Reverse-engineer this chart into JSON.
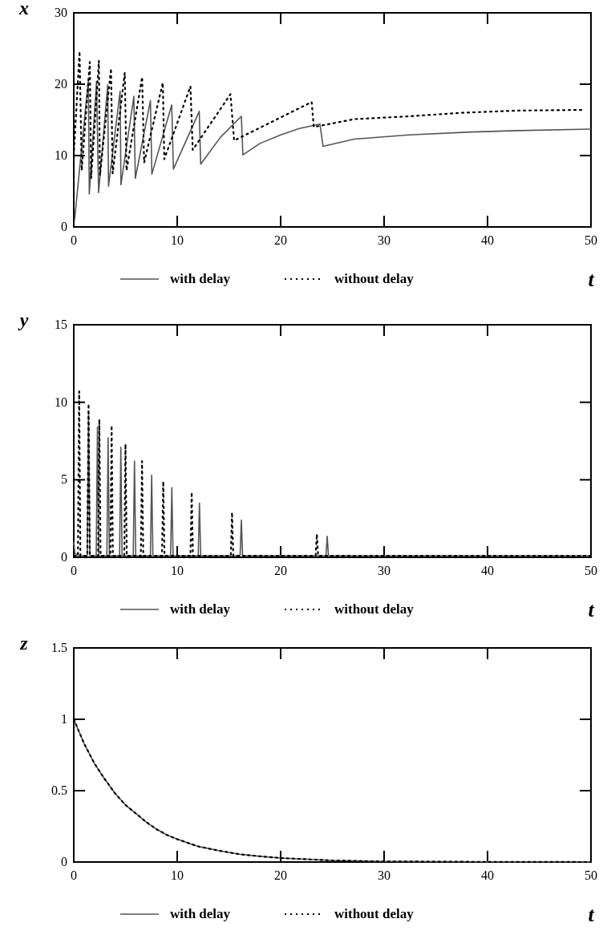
{
  "chart_data": [
    {
      "type": "line",
      "ylabel": "x",
      "xlabel": "t",
      "xlim": [
        0,
        50
      ],
      "ylim": [
        0,
        30
      ],
      "xticks": [
        0,
        10,
        20,
        30,
        40,
        50
      ],
      "yticks": [
        0,
        10,
        20,
        30
      ],
      "legend": "bottom",
      "grid": false,
      "series": [
        {
          "name": "with delay",
          "color": "#555555",
          "line_style": "solid",
          "x": [
            0.08,
            1.41,
            1.5,
            2.2,
            2.4,
            3.28,
            3.36,
            4.48,
            4.56,
            5.81,
            5.95,
            7.41,
            7.55,
            9.47,
            9.63,
            12.13,
            12.27,
            14.2,
            16.2,
            16.35,
            18,
            20,
            21.8,
            23.8,
            24.1,
            27.1,
            32.4,
            38.4,
            42.9,
            50
          ],
          "values": [
            1.0,
            20.6,
            4.6,
            20.4,
            4.8,
            19.9,
            5.7,
            19.0,
            5.9,
            18.3,
            6.8,
            17.7,
            7.4,
            17.1,
            8.1,
            16.2,
            8.8,
            12.6,
            15.5,
            10.1,
            11.7,
            12.9,
            13.8,
            14.4,
            11.3,
            12.3,
            12.9,
            13.3,
            13.5,
            13.7
          ]
        },
        {
          "name": "without delay",
          "color": "#000000",
          "line_style": "dotted",
          "x": [
            0,
            0.56,
            0.77,
            1.55,
            1.68,
            2.43,
            2.53,
            3.6,
            3.76,
            4.93,
            5.1,
            6.61,
            6.8,
            8.61,
            8.75,
            11.28,
            11.5,
            15.15,
            15.5,
            23.0,
            23.2,
            27.1,
            32.4,
            37.6,
            42.9,
            49.2
          ],
          "values": [
            10,
            24.6,
            7.9,
            23.1,
            6.8,
            23.3,
            7.2,
            22.2,
            7.5,
            21.6,
            7.9,
            21.0,
            9.0,
            20.2,
            9.5,
            19.7,
            10.8,
            18.6,
            12.1,
            17.5,
            14.0,
            15.1,
            15.5,
            16.0,
            16.3,
            16.4
          ]
        }
      ]
    },
    {
      "type": "line",
      "ylabel": "y",
      "xlabel": "t",
      "xlim": [
        0,
        50
      ],
      "ylim": [
        0,
        15
      ],
      "xticks": [
        0,
        10,
        20,
        30,
        40,
        50
      ],
      "yticks": [
        0,
        5,
        10,
        15
      ],
      "legend": "bottom",
      "grid": false,
      "series": [
        {
          "name": "with delay",
          "color": "#555555",
          "line_style": "solid",
          "x": [
            0,
            0.1,
            0.3,
            1.3,
            1.43,
            1.55,
            2.17,
            2.29,
            2.41,
            3.2,
            3.32,
            3.44,
            4.43,
            4.55,
            4.67,
            5.75,
            5.87,
            5.99,
            7.41,
            7.53,
            7.65,
            9.36,
            9.48,
            9.6,
            12.03,
            12.15,
            12.27,
            16.08,
            16.2,
            16.32,
            24.38,
            24.5,
            24.62,
            50
          ],
          "values": [
            1.0,
            0.3,
            0.1,
            0.1,
            9.35,
            0.1,
            0.1,
            8.4,
            0.1,
            0.1,
            7.7,
            0.1,
            0.1,
            7.1,
            0.1,
            0.1,
            6.2,
            0.1,
            0.1,
            5.3,
            0.1,
            0.1,
            4.5,
            0.1,
            0.1,
            3.5,
            0.1,
            0.1,
            2.4,
            0.1,
            0.1,
            1.35,
            0.1,
            0.1
          ]
        },
        {
          "name": "without delay",
          "color": "#000000",
          "line_style": "dotted",
          "x": [
            0,
            0.4,
            0.52,
            0.64,
            1.31,
            1.43,
            1.55,
            2.35,
            2.47,
            2.59,
            3.54,
            3.66,
            3.78,
            4.88,
            5.0,
            5.12,
            6.48,
            6.6,
            6.72,
            8.53,
            8.65,
            8.77,
            11.28,
            11.4,
            11.52,
            15.18,
            15.3,
            15.42,
            23.38,
            23.5,
            23.62,
            50
          ],
          "values": [
            0.1,
            0.1,
            10.7,
            0.1,
            0.1,
            9.9,
            0.1,
            0.1,
            8.9,
            0.1,
            0.1,
            8.5,
            0.1,
            0.1,
            7.3,
            0.1,
            0.1,
            6.2,
            0.1,
            0.1,
            4.9,
            0.1,
            0.1,
            4.2,
            0.1,
            0.1,
            2.9,
            0.1,
            0.1,
            1.5,
            0.1,
            0.1
          ]
        }
      ]
    },
    {
      "type": "line",
      "ylabel": "z",
      "xlabel": "t",
      "xlim": [
        0,
        50
      ],
      "ylim": [
        0,
        1.5
      ],
      "xticks": [
        0,
        10,
        20,
        30,
        40,
        50
      ],
      "yticks": [
        0,
        0.5,
        1,
        1.5
      ],
      "legend": "bottom",
      "grid": false,
      "series": [
        {
          "name": "with delay",
          "color": "#555555",
          "line_style": "solid",
          "x": [
            0,
            1,
            2,
            3,
            4,
            5,
            6,
            7,
            8,
            9,
            10,
            12,
            14,
            16,
            18,
            20,
            25,
            30,
            40,
            50
          ],
          "values": [
            1,
            0.83,
            0.69,
            0.58,
            0.48,
            0.4,
            0.34,
            0.28,
            0.23,
            0.19,
            0.16,
            0.11,
            0.08,
            0.055,
            0.04,
            0.028,
            0.011,
            0.004,
            0.001,
            0
          ]
        },
        {
          "name": "without delay",
          "color": "#000000",
          "line_style": "dotted",
          "x": [
            0,
            1,
            2,
            3,
            4,
            5,
            6,
            7,
            8,
            9,
            10,
            12,
            14,
            16,
            18,
            20,
            25,
            30,
            40,
            50
          ],
          "values": [
            1,
            0.83,
            0.69,
            0.58,
            0.48,
            0.4,
            0.34,
            0.28,
            0.23,
            0.19,
            0.16,
            0.11,
            0.08,
            0.055,
            0.04,
            0.028,
            0.011,
            0.004,
            0.001,
            0
          ]
        }
      ]
    }
  ]
}
